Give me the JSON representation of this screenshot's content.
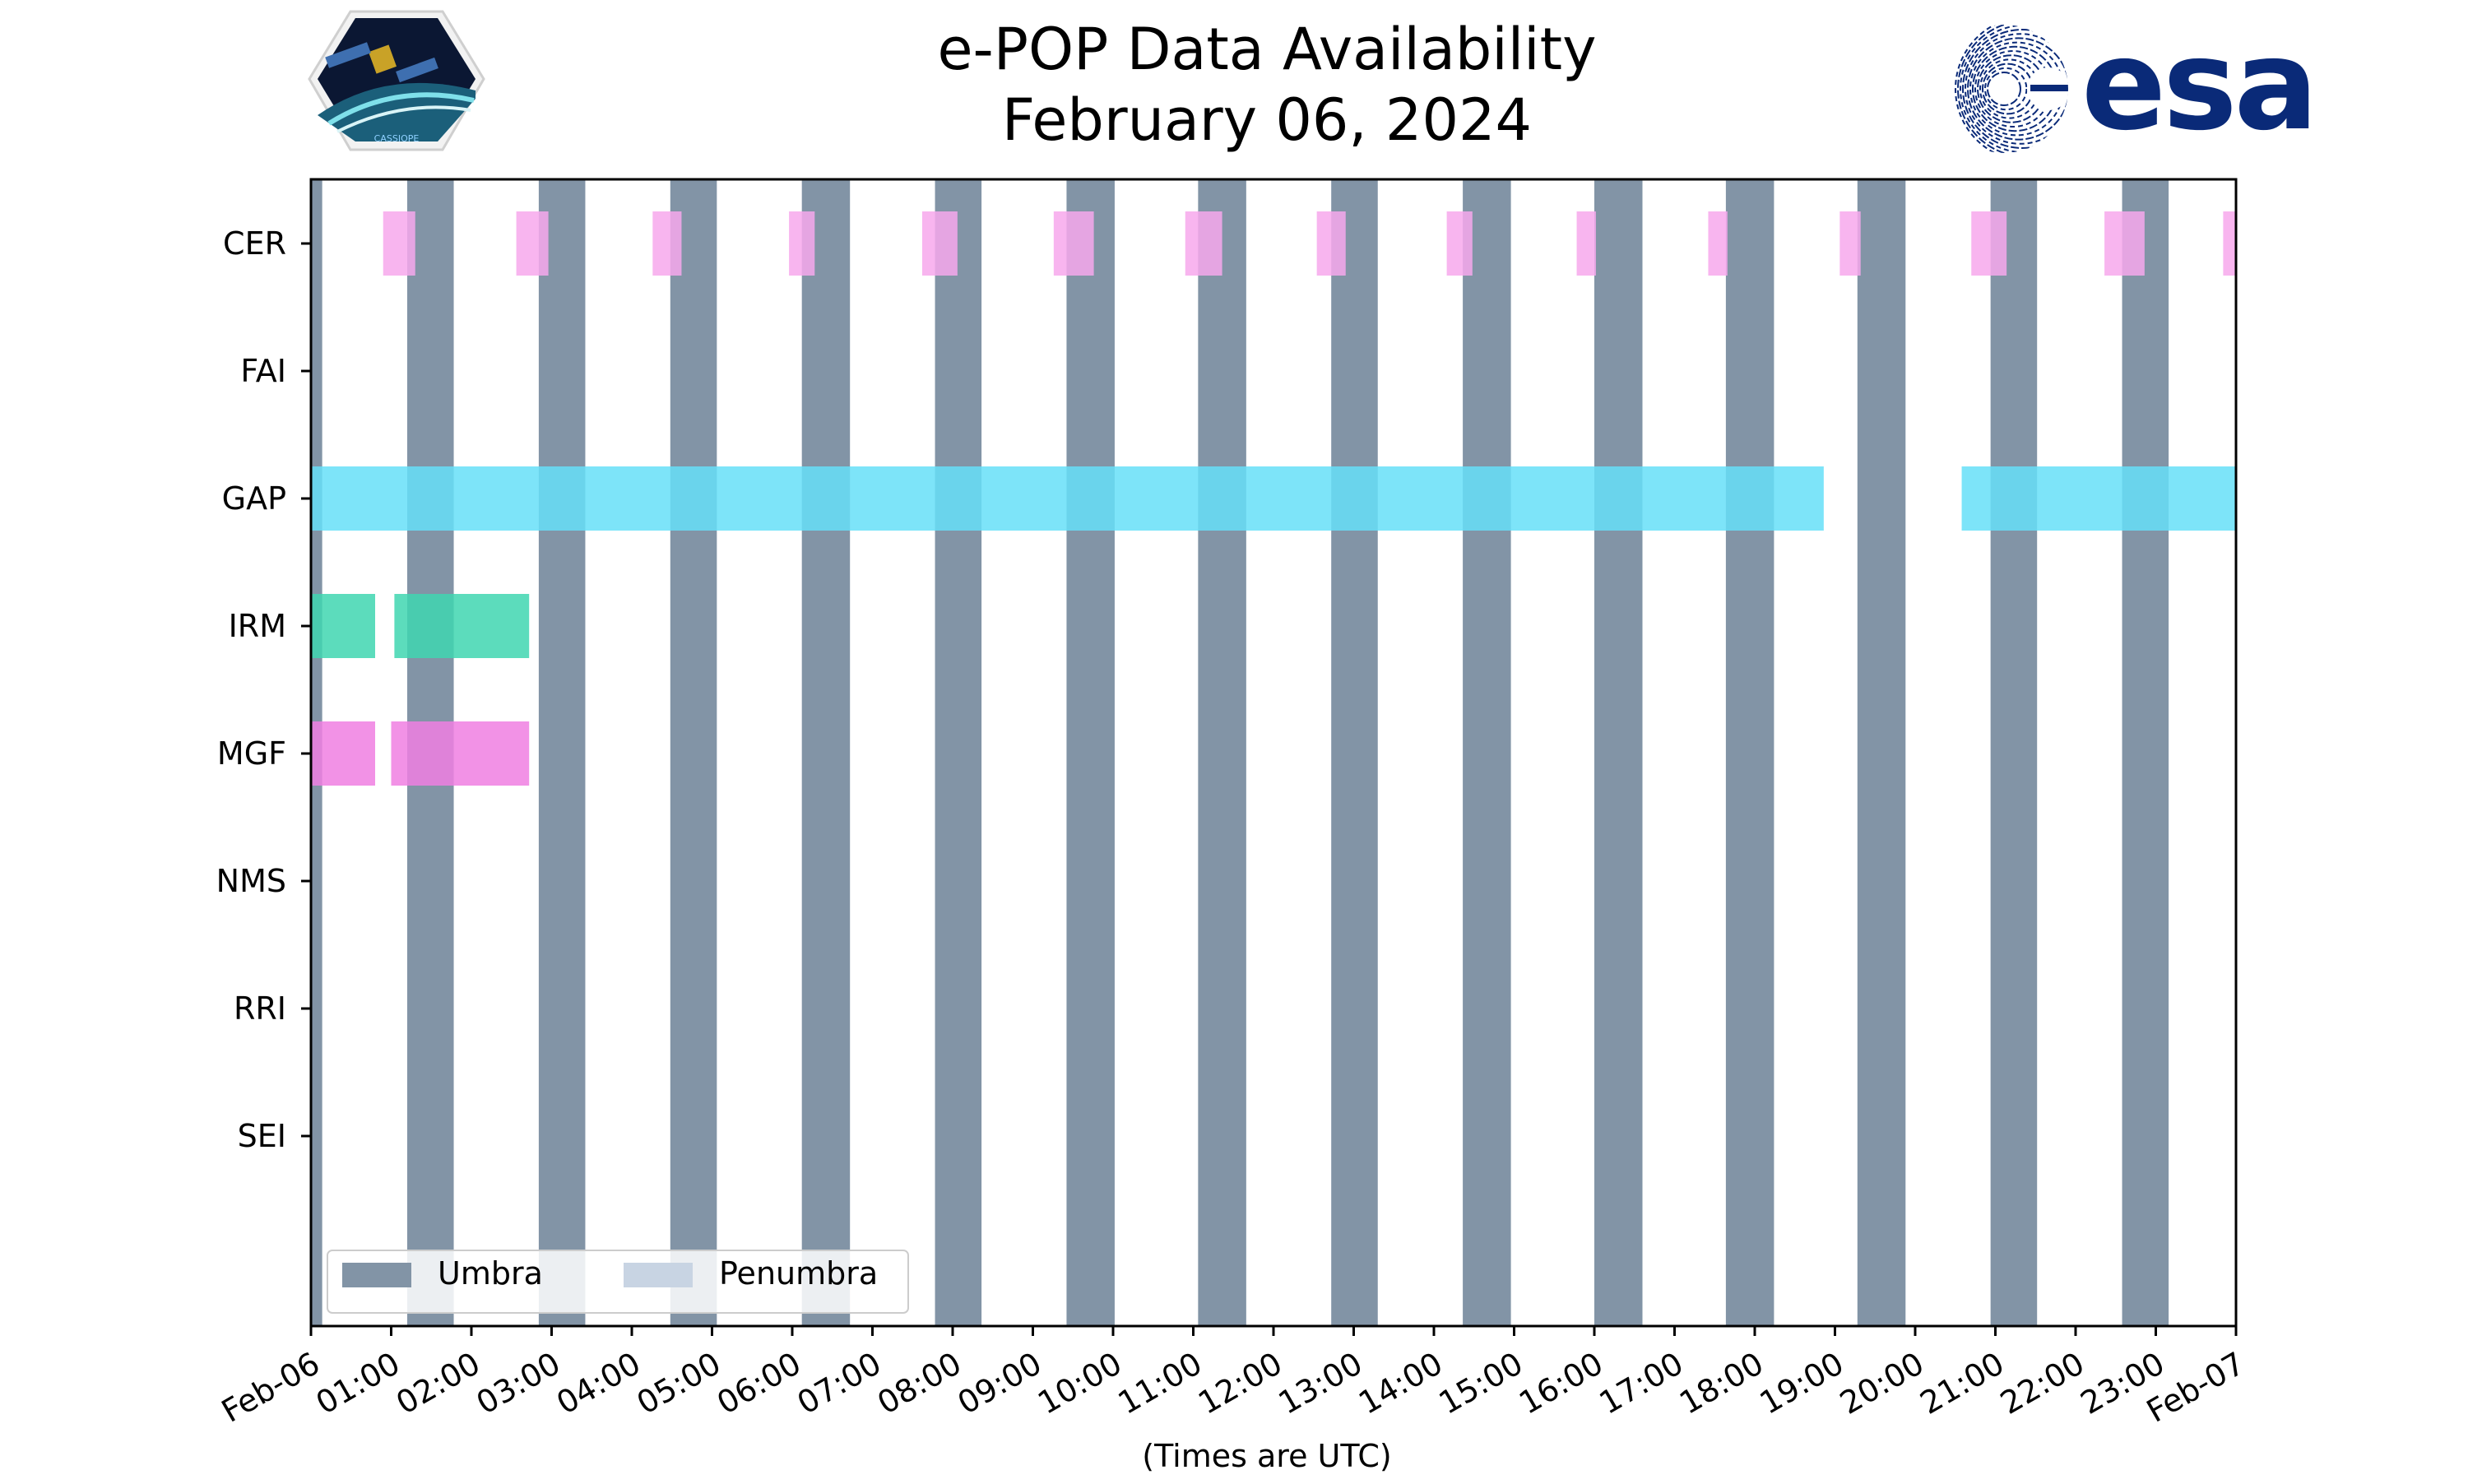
{
  "chart_data": {
    "type": "timeline",
    "title": [
      "e-POP Data Availability",
      "February 06, 2024"
    ],
    "xlabel": "(Times are UTC)",
    "x_unit": "hours (UTC)",
    "xlim": [
      0,
      24
    ],
    "x_ticks": [
      {
        "value": 0,
        "label": "Feb-06"
      },
      {
        "value": 1,
        "label": "01:00"
      },
      {
        "value": 2,
        "label": "02:00"
      },
      {
        "value": 3,
        "label": "03:00"
      },
      {
        "value": 4,
        "label": "04:00"
      },
      {
        "value": 5,
        "label": "05:00"
      },
      {
        "value": 6,
        "label": "06:00"
      },
      {
        "value": 7,
        "label": "07:00"
      },
      {
        "value": 8,
        "label": "08:00"
      },
      {
        "value": 9,
        "label": "09:00"
      },
      {
        "value": 10,
        "label": "10:00"
      },
      {
        "value": 11,
        "label": "11:00"
      },
      {
        "value": 12,
        "label": "12:00"
      },
      {
        "value": 13,
        "label": "13:00"
      },
      {
        "value": 14,
        "label": "14:00"
      },
      {
        "value": 15,
        "label": "15:00"
      },
      {
        "value": 16,
        "label": "16:00"
      },
      {
        "value": 17,
        "label": "17:00"
      },
      {
        "value": 18,
        "label": "18:00"
      },
      {
        "value": 19,
        "label": "19:00"
      },
      {
        "value": 20,
        "label": "20:00"
      },
      {
        "value": 21,
        "label": "21:00"
      },
      {
        "value": 22,
        "label": "22:00"
      },
      {
        "value": 23,
        "label": "23:00"
      },
      {
        "value": 24,
        "label": "Feb-07"
      }
    ],
    "instruments": [
      "CER",
      "FAI",
      "GAP",
      "IRM",
      "MGF",
      "NMS",
      "RRI",
      "SEI"
    ],
    "colors": {
      "umbra": "#8294a6",
      "penumbra": "#c8d4e3",
      "CER": "#f7a8ec",
      "GAP": "#66dff8",
      "IRM": "#40d6b0",
      "MGF": "#f07fe2"
    },
    "umbra": [
      [
        0.0,
        0.14
      ],
      [
        1.2,
        1.78
      ],
      [
        2.84,
        3.42
      ],
      [
        4.48,
        5.06
      ],
      [
        6.12,
        6.72
      ],
      [
        7.78,
        8.36
      ],
      [
        9.42,
        10.02
      ],
      [
        11.06,
        11.66
      ],
      [
        12.72,
        13.3
      ],
      [
        14.36,
        14.96
      ],
      [
        16.0,
        16.6
      ],
      [
        17.64,
        18.24
      ],
      [
        19.28,
        19.88
      ],
      [
        20.94,
        21.52
      ],
      [
        22.58,
        23.16
      ]
    ],
    "penumbra": [],
    "series": [
      {
        "name": "CER",
        "intervals": [
          [
            0.9,
            1.3
          ],
          [
            2.56,
            2.96
          ],
          [
            4.26,
            4.62
          ],
          [
            5.96,
            6.28
          ],
          [
            7.62,
            8.06
          ],
          [
            9.26,
            9.76
          ],
          [
            10.9,
            11.36
          ],
          [
            12.54,
            12.9
          ],
          [
            14.16,
            14.48
          ],
          [
            15.78,
            16.02
          ],
          [
            17.42,
            17.66
          ],
          [
            19.06,
            19.32
          ],
          [
            20.7,
            21.14
          ],
          [
            22.36,
            22.86
          ],
          [
            23.84,
            24.0
          ]
        ]
      },
      {
        "name": "FAI",
        "intervals": []
      },
      {
        "name": "GAP",
        "intervals": [
          [
            0.0,
            18.86
          ],
          [
            20.58,
            24.0
          ]
        ]
      },
      {
        "name": "IRM",
        "intervals": [
          [
            0.0,
            0.8
          ],
          [
            1.04,
            2.72
          ]
        ]
      },
      {
        "name": "MGF",
        "intervals": [
          [
            0.0,
            0.8
          ],
          [
            1.0,
            2.72
          ]
        ]
      },
      {
        "name": "NMS",
        "intervals": []
      },
      {
        "name": "RRI",
        "intervals": []
      },
      {
        "name": "SEI",
        "intervals": []
      }
    ],
    "legend": {
      "position": "bottom-left",
      "entries": [
        {
          "label": "Umbra",
          "color_key": "umbra"
        },
        {
          "label": "Penumbra",
          "color_key": "penumbra"
        }
      ]
    }
  },
  "logos": {
    "left": {
      "name": "cassiope-mission-patch",
      "text": "CASSIOPE"
    },
    "right": {
      "name": "esa-logo",
      "text": "esa"
    }
  }
}
